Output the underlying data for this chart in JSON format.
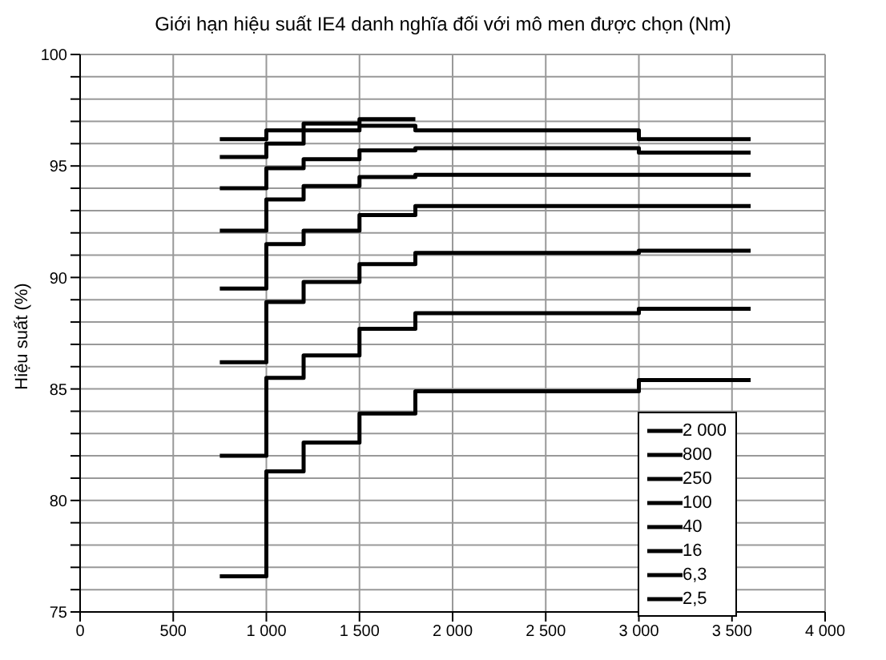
{
  "chart_data": {
    "type": "step",
    "title": "Giới hạn hiệu suất IE4 danh nghĩa đối với mô men được chọn (Nm)",
    "ylabel": "Hiệu suất (%)",
    "x": [
      750,
      1000,
      1200,
      1500,
      1800,
      3000,
      3600
    ],
    "series": [
      {
        "name": "2 000",
        "color": "#000000",
        "values": [
          96.2,
          96.6,
          96.9,
          97.1,
          97.1,
          null,
          null
        ]
      },
      {
        "name": "800",
        "color": "#000000",
        "values": [
          95.4,
          96.0,
          96.6,
          96.8,
          96.6,
          96.2,
          96.2
        ]
      },
      {
        "name": "250",
        "color": "#000000",
        "values": [
          94.0,
          94.9,
          95.3,
          95.7,
          95.8,
          95.6,
          95.6
        ]
      },
      {
        "name": "100",
        "color": "#000000",
        "values": [
          92.1,
          93.5,
          94.1,
          94.5,
          94.6,
          94.6,
          94.6
        ]
      },
      {
        "name": "40",
        "color": "#000000",
        "values": [
          89.5,
          91.5,
          92.1,
          92.8,
          93.2,
          93.2,
          93.2
        ]
      },
      {
        "name": "16",
        "color": "#000000",
        "values": [
          86.2,
          88.9,
          89.8,
          90.6,
          91.1,
          91.2,
          91.2
        ]
      },
      {
        "name": "6,3",
        "color": "#000000",
        "values": [
          82.0,
          85.5,
          86.5,
          87.7,
          88.4,
          88.6,
          88.6
        ]
      },
      {
        "name": "2,5",
        "color": "#000000",
        "values": [
          76.6,
          81.3,
          82.6,
          83.9,
          84.9,
          85.4,
          85.4
        ]
      }
    ],
    "xlim": [
      0,
      4000
    ],
    "xticks": [
      {
        "value": 0,
        "label": "0"
      },
      {
        "value": 500,
        "label": "500"
      },
      {
        "value": 1000,
        "label": "1 000"
      },
      {
        "value": 1500,
        "label": "1 500"
      },
      {
        "value": 2000,
        "label": "2 000"
      },
      {
        "value": 2500,
        "label": "2 500"
      },
      {
        "value": 3000,
        "label": "3 000"
      },
      {
        "value": 3500,
        "label": "3 500"
      },
      {
        "value": 4000,
        "label": "4 000"
      }
    ],
    "ylim": [
      75,
      100
    ],
    "yticks": [
      75,
      {
        "value": 76,
        "label": null
      },
      {
        "value": 77,
        "label": null
      },
      {
        "value": 78,
        "label": null
      },
      {
        "value": 79,
        "label": null
      },
      80,
      {
        "value": 81,
        "label": null
      },
      {
        "value": 82,
        "label": null
      },
      {
        "value": 83,
        "label": null
      },
      {
        "value": 84,
        "label": null
      },
      85,
      {
        "value": 86,
        "label": null
      },
      {
        "value": 87,
        "label": null
      },
      {
        "value": 88,
        "label": null
      },
      {
        "value": 89,
        "label": null
      },
      90,
      {
        "value": 91,
        "label": null
      },
      {
        "value": 92,
        "label": null
      },
      {
        "value": 93,
        "label": null
      },
      {
        "value": 94,
        "label": null
      },
      95,
      {
        "value": 96,
        "label": null
      },
      {
        "value": 97,
        "label": null
      },
      {
        "value": 98,
        "label": null
      },
      {
        "value": 99,
        "label": null
      },
      100
    ],
    "grid": true,
    "legend": "bottom right",
    "marker": "none",
    "line_style": "solid"
  }
}
